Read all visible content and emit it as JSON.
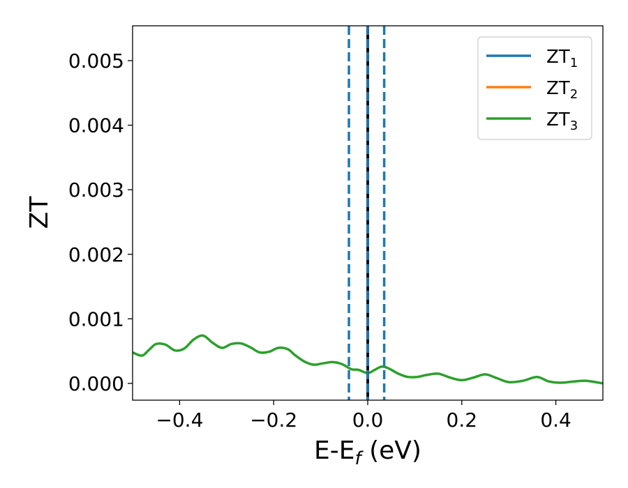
{
  "chart_data": {
    "type": "line",
    "title": "",
    "xlabel": "E-E",
    "xlabel_sub": "f",
    "xlabel_unit": " (eV)",
    "ylabel": "ZT",
    "xlim": [
      -0.5,
      0.5
    ],
    "ylim": [
      -0.00026,
      0.00554
    ],
    "x_ticks": [
      -0.4,
      -0.2,
      0.0,
      0.2,
      0.4
    ],
    "x_tick_labels": [
      "−0.4",
      "−0.2",
      "0.0",
      "0.2",
      "0.4"
    ],
    "y_ticks": [
      0.0,
      0.001,
      0.002,
      0.003,
      0.004,
      0.005
    ],
    "y_tick_labels": [
      "0.000",
      "0.001",
      "0.002",
      "0.003",
      "0.004",
      "0.005"
    ],
    "grid": false,
    "legend_position": "top-right",
    "vlines": [
      {
        "x": -0.04,
        "style": "dashed",
        "color": "#1f77b4"
      },
      {
        "x": 0.0,
        "style": "solid",
        "color": "#000000"
      },
      {
        "x": 0.0,
        "style": "dashed",
        "color": "#1f77b4"
      },
      {
        "x": 0.035,
        "style": "dashed",
        "color": "#1f77b4"
      }
    ],
    "series": [
      {
        "name": "ZT",
        "subscript": "1",
        "color": "#1f77b4",
        "x": [],
        "y": []
      },
      {
        "name": "ZT",
        "subscript": "2",
        "color": "#ff7f0e",
        "x": [],
        "y": []
      },
      {
        "name": "ZT",
        "subscript": "3",
        "color": "#2ca02c",
        "x": [
          -0.5,
          -0.48,
          -0.465,
          -0.45,
          -0.43,
          -0.41,
          -0.39,
          -0.37,
          -0.35,
          -0.33,
          -0.31,
          -0.29,
          -0.27,
          -0.25,
          -0.23,
          -0.21,
          -0.19,
          -0.17,
          -0.155,
          -0.135,
          -0.115,
          -0.095,
          -0.075,
          -0.055,
          -0.035,
          -0.02,
          0.0,
          0.015,
          0.03,
          0.045,
          0.065,
          0.085,
          0.105,
          0.125,
          0.15,
          0.175,
          0.2,
          0.225,
          0.25,
          0.275,
          0.3,
          0.33,
          0.36,
          0.385,
          0.41,
          0.44,
          0.465,
          0.5
        ],
        "y": [
          0.00048,
          0.00043,
          0.00052,
          0.00061,
          0.0006,
          0.00051,
          0.00054,
          0.00068,
          0.00074,
          0.00063,
          0.00055,
          0.00061,
          0.00062,
          0.00056,
          0.00048,
          0.00049,
          0.00055,
          0.00053,
          0.00044,
          0.00034,
          0.00029,
          0.00031,
          0.00033,
          0.0003,
          0.00022,
          0.00021,
          0.00016,
          0.00021,
          0.00026,
          0.00023,
          0.00015,
          0.0001,
          0.0001,
          0.00013,
          0.00015,
          9e-05,
          5e-05,
          9e-05,
          0.00014,
          8e-05,
          2e-05,
          4e-05,
          0.0001,
          3e-05,
          1e-05,
          3e-05,
          4e-05,
          0.0
        ]
      }
    ]
  }
}
